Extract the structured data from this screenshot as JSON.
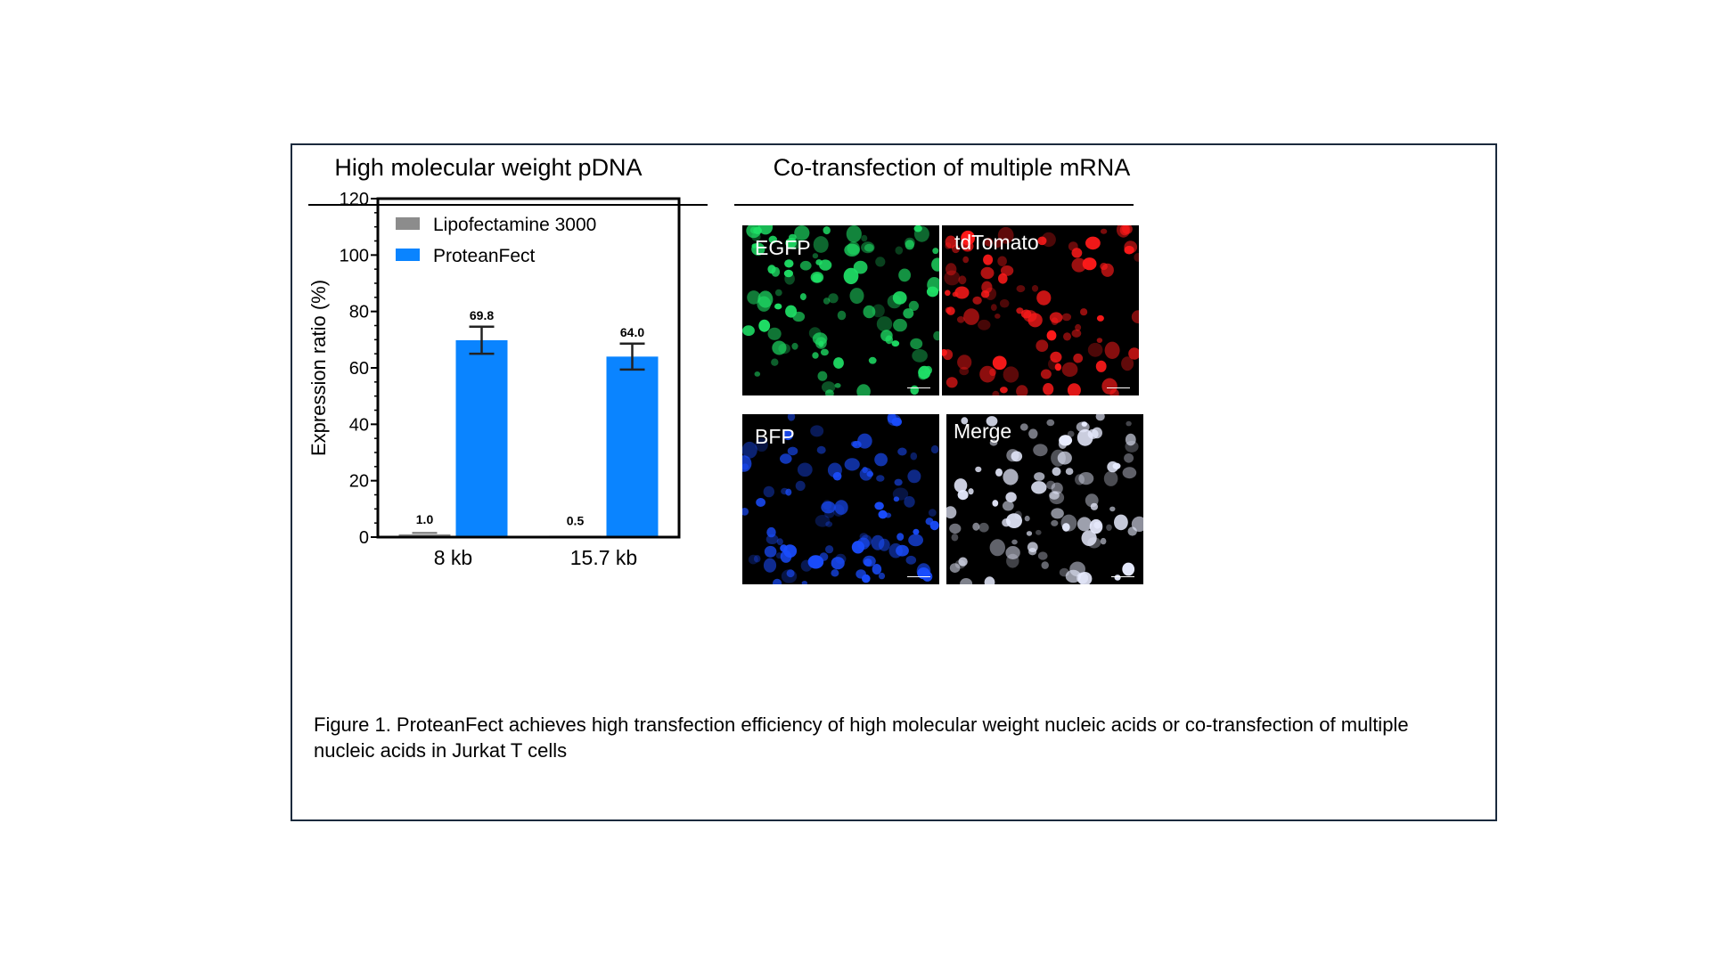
{
  "figure": {
    "left_title": "High molecular weight pDNA",
    "right_title": "Co-transfection of multiple mRNA",
    "caption": "Figure 1. ProteanFect achieves high transfection efficiency of high molecular weight nucleic acids or co-transfection of multiple nucleic acids in Jurkat T cells"
  },
  "chart_data": {
    "type": "bar",
    "categories": [
      "8 kb",
      "15.7 kb"
    ],
    "ylabel": "Expression ratio (%)",
    "ylim": [
      0,
      120
    ],
    "yticks": [
      0,
      20,
      40,
      60,
      80,
      100,
      120
    ],
    "legend_position": "top-left",
    "grid": false,
    "series": [
      {
        "name": "Lipofectamine 3000",
        "color": "#8c8c8c",
        "values": [
          1.0,
          0.5
        ],
        "errors": [
          0.5,
          0.2
        ],
        "labels": [
          "1.0",
          "0.5"
        ]
      },
      {
        "name": "ProteanFect",
        "color": "#0a84ff",
        "values": [
          69.8,
          64.0
        ],
        "errors": [
          4.8,
          4.6
        ],
        "labels": [
          "69.8",
          "64.0"
        ]
      }
    ]
  },
  "images": [
    {
      "label": "EGFP",
      "color": "#1fe066"
    },
    {
      "label": "tdTomato",
      "color": "#ff1a1a"
    },
    {
      "label": "BFP",
      "color": "#1a4dff"
    },
    {
      "label": "Merge",
      "color": "#e8ecff"
    }
  ]
}
